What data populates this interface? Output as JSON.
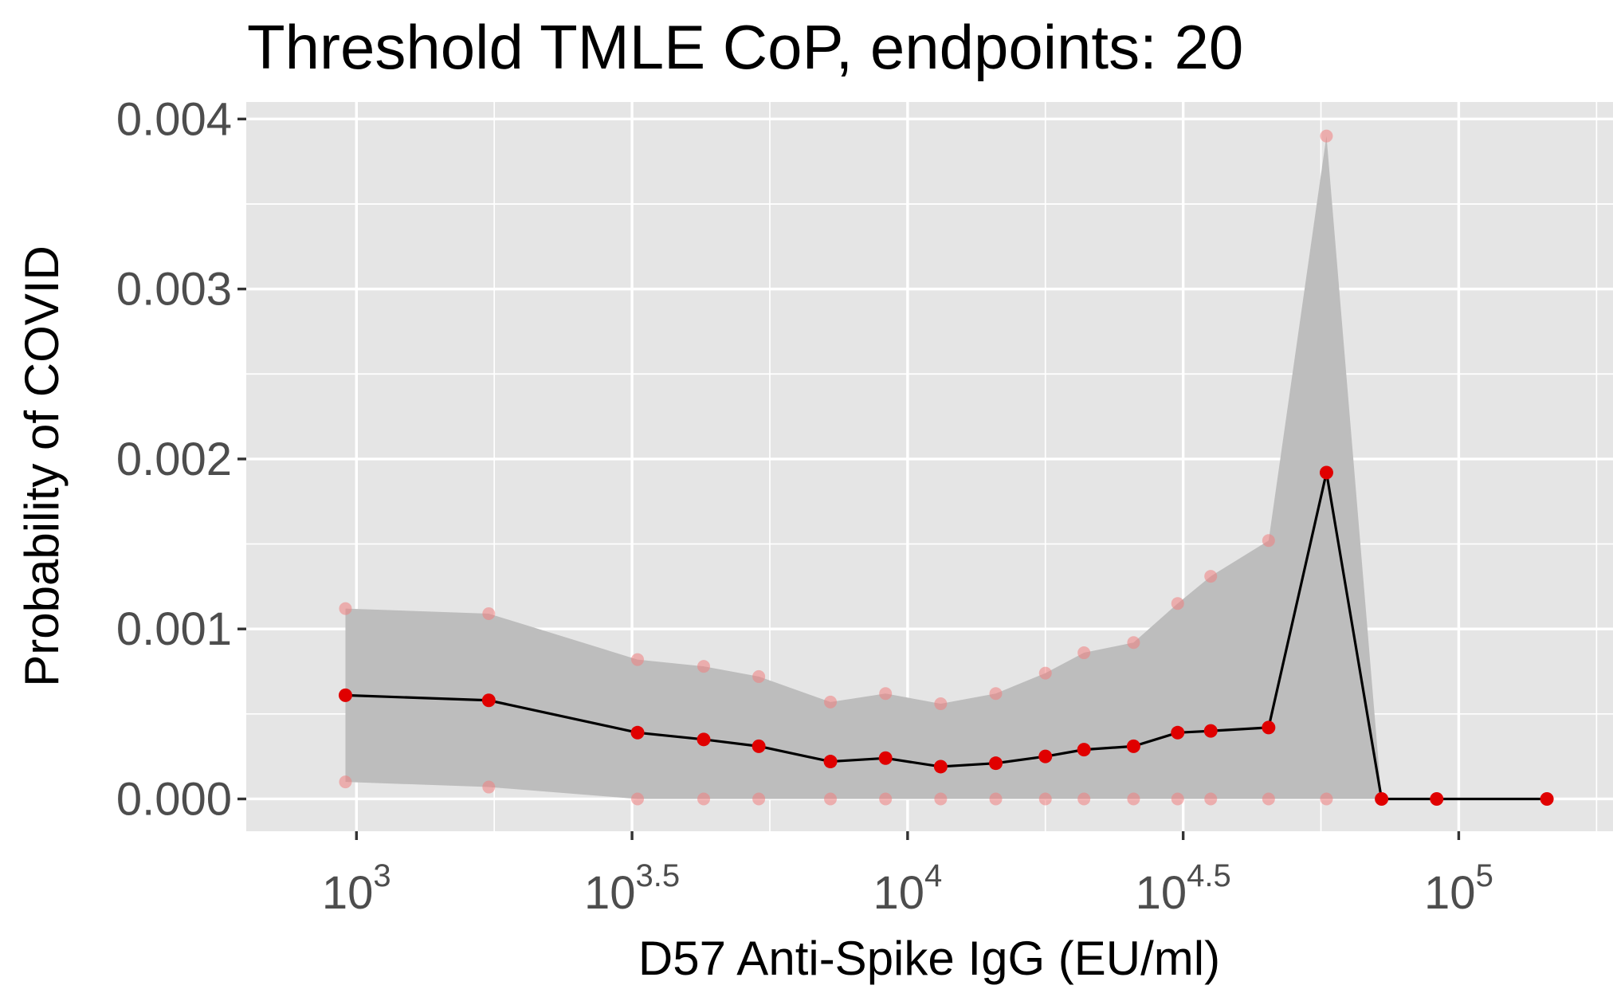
{
  "chart_data": {
    "type": "line",
    "title": "Threshold TMLE CoP, endpoints: 20",
    "xlabel": "D57 Anti-Spike IgG (EU/ml)",
    "ylabel": "Probability of COVID",
    "x_scale": "log10",
    "x_ticks": [
      {
        "value": 1000,
        "base": "10",
        "exp": "3"
      },
      {
        "value": 3162.28,
        "base": "10",
        "exp": "3.5"
      },
      {
        "value": 10000,
        "base": "10",
        "exp": "4"
      },
      {
        "value": 31622.8,
        "base": "10",
        "exp": "4.5"
      },
      {
        "value": 100000,
        "base": "10",
        "exp": "5"
      }
    ],
    "y_ticks": [
      "0.000",
      "0.001",
      "0.002",
      "0.003",
      "0.004"
    ],
    "xlim": [
      631,
      190500
    ],
    "ylim": [
      -0.00019,
      0.0041
    ],
    "grid": true,
    "legend": "none",
    "colors": {
      "panel": "#e5e5e5",
      "grid": "#ffffff",
      "band": "#bdbdbd",
      "line": "#000000",
      "point": "#e00000",
      "ci_point": "#f08080"
    },
    "series": [
      {
        "x": [
          955,
          1738,
          3236,
          4266,
          5370,
          7244,
          9120,
          11482,
          14454,
          17783,
          20893,
          25704,
          30903,
          35481,
          45186,
          57544,
          72444,
          91201,
          144544
        ],
        "y": [
          0.00061,
          0.00058,
          0.00039,
          0.00035,
          0.00031,
          0.00022,
          0.00024,
          0.00019,
          0.00021,
          0.00025,
          0.00029,
          0.00031,
          0.00039,
          0.0004,
          0.00042,
          0.00192,
          0.0,
          0.0,
          0.0
        ],
        "lower": [
          0.0001,
          7e-05,
          0.0,
          0.0,
          0.0,
          0.0,
          0.0,
          0.0,
          0.0,
          0.0,
          0.0,
          0.0,
          0.0,
          0.0,
          0.0,
          0.0,
          0.0,
          0.0,
          0.0
        ],
        "upper": [
          0.00112,
          0.00109,
          0.00082,
          0.00078,
          0.00072,
          0.00057,
          0.00062,
          0.00056,
          0.00062,
          0.00074,
          0.00086,
          0.00092,
          0.00115,
          0.00131,
          0.00152,
          0.0039,
          0.0,
          0.0,
          0.0
        ],
        "ci_points_count": 16
      }
    ]
  }
}
